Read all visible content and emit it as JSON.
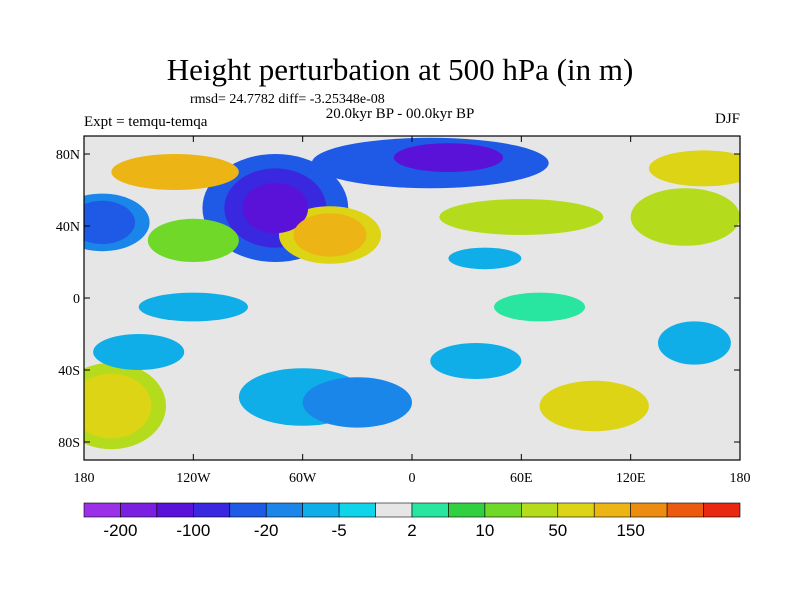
{
  "chart_data": {
    "type": "heatmap",
    "title": "Height perturbation at 500 hPa (in m)",
    "stats": "rmsd= 24.7782 diff= -3.25348e-08",
    "period": "20.0kyr BP - 00.0kyr BP",
    "expt": "Expt = temqu-temqa",
    "season": "DJF",
    "xlim": [
      -180,
      180
    ],
    "ylim": [
      -90,
      90
    ],
    "x_ticks": [
      {
        "value": -180,
        "label": "180"
      },
      {
        "value": -120,
        "label": "120W"
      },
      {
        "value": -60,
        "label": "60W"
      },
      {
        "value": 0,
        "label": "0"
      },
      {
        "value": 60,
        "label": "60E"
      },
      {
        "value": 120,
        "label": "120E"
      },
      {
        "value": 180,
        "label": "180"
      }
    ],
    "y_ticks": [
      {
        "value": 80,
        "label": "80N"
      },
      {
        "value": 40,
        "label": "40N"
      },
      {
        "value": 0,
        "label": "0"
      },
      {
        "value": -40,
        "label": "40S"
      },
      {
        "value": -80,
        "label": "80S"
      }
    ],
    "colorbar": {
      "colors": [
        "#9a30e8",
        "#7a20e0",
        "#5a12d8",
        "#3a28e0",
        "#1e5ae6",
        "#1a86ea",
        "#10aee8",
        "#10d4ea",
        "#e6e6e6",
        "#28e6a0",
        "#30d040",
        "#70d828",
        "#b4dc1c",
        "#dcd414",
        "#ecb414",
        "#ec8c10",
        "#ec5a10",
        "#e82810"
      ],
      "labels": [
        {
          "boundary": 1,
          "text": "-200"
        },
        {
          "boundary": 3,
          "text": "-100"
        },
        {
          "boundary": 5,
          "text": "-20"
        },
        {
          "boundary": 7,
          "text": "-5"
        },
        {
          "boundary": 9,
          "text": "2"
        },
        {
          "boundary": 11,
          "text": "10"
        },
        {
          "boundary": 13,
          "text": "50"
        },
        {
          "boundary": 15,
          "text": "150"
        }
      ]
    },
    "field_background_level": 8,
    "features": [
      {
        "lon": -75,
        "lat": 50,
        "level": 2,
        "spread_lon": 18,
        "spread_lat": 14
      },
      {
        "lon": -75,
        "lat": 50,
        "level": 3,
        "spread_lon": 28,
        "spread_lat": 22
      },
      {
        "lon": -75,
        "lat": 50,
        "level": 4,
        "spread_lon": 40,
        "spread_lat": 30
      },
      {
        "lon": 20,
        "lat": 78,
        "level": 2,
        "spread_lon": 30,
        "spread_lat": 8
      },
      {
        "lon": 10,
        "lat": 75,
        "level": 4,
        "spread_lon": 65,
        "spread_lat": 14
      },
      {
        "lon": 150,
        "lat": 45,
        "level": 12,
        "spread_lon": 30,
        "spread_lat": 16
      },
      {
        "lon": 60,
        "lat": 45,
        "level": 12,
        "spread_lon": 45,
        "spread_lat": 10
      },
      {
        "lon": -45,
        "lat": 35,
        "level": 14,
        "spread_lon": 20,
        "spread_lat": 12
      },
      {
        "lon": -45,
        "lat": 35,
        "level": 13,
        "spread_lon": 28,
        "spread_lat": 16
      },
      {
        "lon": -170,
        "lat": 42,
        "level": 4,
        "spread_lon": 18,
        "spread_lat": 12
      },
      {
        "lon": -170,
        "lat": 42,
        "level": 5,
        "spread_lon": 26,
        "spread_lat": 16
      },
      {
        "lon": -130,
        "lat": 70,
        "level": 14,
        "spread_lon": 35,
        "spread_lat": 10
      },
      {
        "lon": 160,
        "lat": 72,
        "level": 13,
        "spread_lon": 30,
        "spread_lat": 10
      },
      {
        "lon": -120,
        "lat": 32,
        "level": 11,
        "spread_lon": 25,
        "spread_lat": 12
      },
      {
        "lon": -165,
        "lat": -60,
        "level": 13,
        "spread_lon": 22,
        "spread_lat": 18
      },
      {
        "lon": -165,
        "lat": -60,
        "level": 12,
        "spread_lon": 30,
        "spread_lat": 24
      },
      {
        "lon": 100,
        "lat": -60,
        "level": 13,
        "spread_lon": 30,
        "spread_lat": 14
      },
      {
        "lon": -30,
        "lat": -58,
        "level": 5,
        "spread_lon": 30,
        "spread_lat": 14
      },
      {
        "lon": -60,
        "lat": -55,
        "level": 6,
        "spread_lon": 35,
        "spread_lat": 16
      },
      {
        "lon": -120,
        "lat": -5,
        "level": 6,
        "spread_lon": 30,
        "spread_lat": 8
      },
      {
        "lon": -150,
        "lat": -30,
        "level": 6,
        "spread_lon": 25,
        "spread_lat": 10
      },
      {
        "lon": 35,
        "lat": -35,
        "level": 6,
        "spread_lon": 25,
        "spread_lat": 10
      },
      {
        "lon": 155,
        "lat": -25,
        "level": 6,
        "spread_lon": 20,
        "spread_lat": 12
      },
      {
        "lon": 40,
        "lat": 22,
        "level": 6,
        "spread_lon": 20,
        "spread_lat": 6
      },
      {
        "lon": 70,
        "lat": -5,
        "level": 9,
        "spread_lon": 25,
        "spread_lat": 8
      }
    ]
  }
}
